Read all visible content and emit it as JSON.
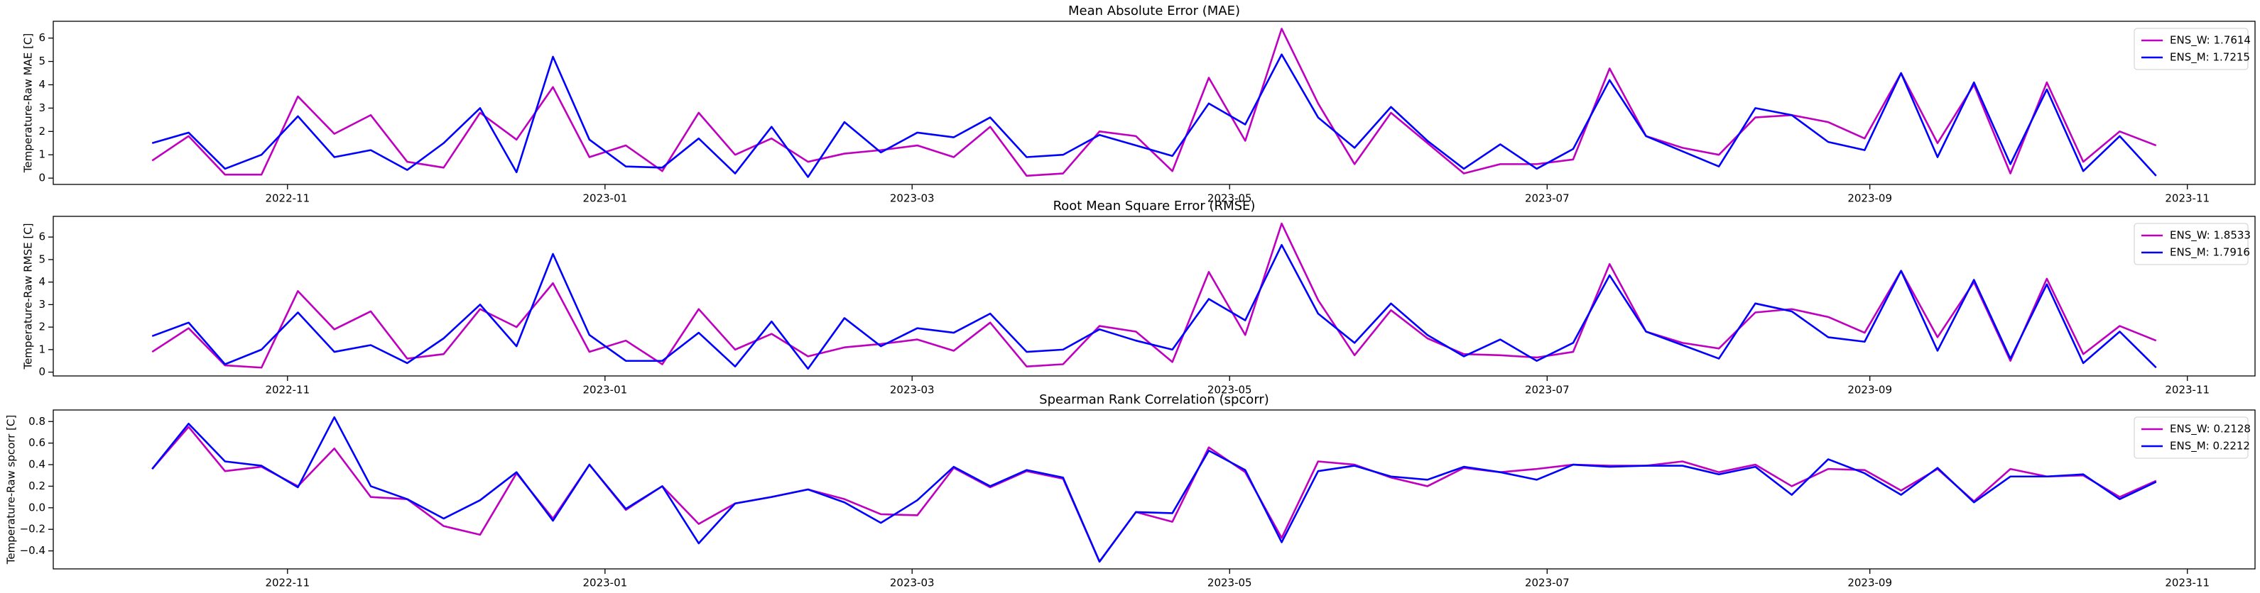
{
  "chart_data": [
    {
      "type": "line",
      "title": "Mean Absolute Error (MAE)",
      "ylabel": "Temperature-Raw MAE [C]",
      "x": [
        "2022-10-06",
        "2022-10-13",
        "2022-10-20",
        "2022-10-27",
        "2022-11-03",
        "2022-11-10",
        "2022-11-17",
        "2022-11-24",
        "2022-12-01",
        "2022-12-08",
        "2022-12-15",
        "2022-12-22",
        "2022-12-29",
        "2023-01-05",
        "2023-01-12",
        "2023-01-19",
        "2023-01-26",
        "2023-02-02",
        "2023-02-09",
        "2023-02-16",
        "2023-02-23",
        "2023-03-02",
        "2023-03-09",
        "2023-03-16",
        "2023-03-23",
        "2023-03-30",
        "2023-04-06",
        "2023-04-13",
        "2023-04-20",
        "2023-04-27",
        "2023-05-04",
        "2023-05-11",
        "2023-05-18",
        "2023-05-25",
        "2023-06-01",
        "2023-06-08",
        "2023-06-15",
        "2023-06-22",
        "2023-06-29",
        "2023-07-06",
        "2023-07-13",
        "2023-07-20",
        "2023-07-27",
        "2023-08-03",
        "2023-08-10",
        "2023-08-17",
        "2023-08-24",
        "2023-08-31",
        "2023-09-07",
        "2023-09-14",
        "2023-09-21",
        "2023-09-28",
        "2023-10-05",
        "2023-10-12",
        "2023-10-19",
        "2023-10-26"
      ],
      "series": [
        {
          "name": "ENS_W: 1.7614",
          "color": "#bf00bf",
          "values": [
            0.75,
            1.8,
            0.15,
            0.15,
            3.5,
            1.9,
            2.7,
            0.7,
            0.45,
            2.8,
            1.65,
            3.9,
            0.9,
            1.4,
            0.3,
            2.8,
            1.0,
            1.7,
            0.7,
            1.05,
            1.2,
            1.4,
            0.9,
            2.2,
            0.1,
            0.2,
            2.0,
            1.8,
            0.3,
            4.3,
            1.6,
            6.4,
            3.2,
            0.6,
            2.8,
            1.5,
            0.2,
            0.6,
            0.6,
            0.8,
            4.7,
            1.8,
            1.3,
            1.0,
            2.6,
            2.7,
            2.4,
            1.7,
            4.5,
            1.5,
            4.0,
            0.2,
            4.1,
            0.7,
            2.0,
            1.4
          ]
        },
        {
          "name": "ENS_M: 1.7215",
          "color": "#0000ff",
          "values": [
            1.5,
            1.95,
            0.4,
            1.0,
            2.65,
            0.9,
            1.2,
            0.35,
            1.5,
            3.0,
            0.25,
            5.2,
            1.65,
            0.5,
            0.45,
            1.7,
            0.2,
            2.2,
            0.05,
            2.4,
            1.1,
            1.95,
            1.75,
            2.6,
            0.9,
            1.0,
            1.85,
            1.4,
            0.95,
            3.2,
            2.3,
            5.3,
            2.6,
            1.3,
            3.05,
            1.6,
            0.4,
            1.45,
            0.4,
            1.25,
            4.2,
            1.8,
            1.15,
            0.5,
            3.0,
            2.7,
            1.55,
            1.2,
            4.5,
            0.9,
            4.1,
            0.6,
            3.8,
            0.3,
            1.8,
            0.1
          ]
        }
      ],
      "xlim": [
        "2022-09-17",
        "2023-11-14"
      ],
      "xticks": [
        {
          "value": "2022-11-01",
          "label": "2022-11"
        },
        {
          "value": "2023-01-01",
          "label": "2023-01"
        },
        {
          "value": "2023-03-01",
          "label": "2023-03"
        },
        {
          "value": "2023-05-01",
          "label": "2023-05"
        },
        {
          "value": "2023-07-01",
          "label": "2023-07"
        },
        {
          "value": "2023-09-01",
          "label": "2023-09"
        },
        {
          "value": "2023-11-01",
          "label": "2023-11"
        }
      ],
      "ylim": [
        -0.27,
        6.72
      ],
      "yticks": [
        0,
        1,
        2,
        3,
        4,
        5,
        6
      ],
      "grid": false,
      "legend": "upper right"
    },
    {
      "type": "line",
      "title": "Root Mean Square Error (RMSE)",
      "ylabel": "Temperature-Raw RMSE [C]",
      "x": [
        "2022-10-06",
        "2022-10-13",
        "2022-10-20",
        "2022-10-27",
        "2022-11-03",
        "2022-11-10",
        "2022-11-17",
        "2022-11-24",
        "2022-12-01",
        "2022-12-08",
        "2022-12-15",
        "2022-12-22",
        "2022-12-29",
        "2023-01-05",
        "2023-01-12",
        "2023-01-19",
        "2023-01-26",
        "2023-02-02",
        "2023-02-09",
        "2023-02-16",
        "2023-02-23",
        "2023-03-02",
        "2023-03-09",
        "2023-03-16",
        "2023-03-23",
        "2023-03-30",
        "2023-04-06",
        "2023-04-13",
        "2023-04-20",
        "2023-04-27",
        "2023-05-04",
        "2023-05-11",
        "2023-05-18",
        "2023-05-25",
        "2023-06-01",
        "2023-06-08",
        "2023-06-15",
        "2023-06-22",
        "2023-06-29",
        "2023-07-06",
        "2023-07-13",
        "2023-07-20",
        "2023-07-27",
        "2023-08-03",
        "2023-08-10",
        "2023-08-17",
        "2023-08-24",
        "2023-08-31",
        "2023-09-07",
        "2023-09-14",
        "2023-09-21",
        "2023-09-28",
        "2023-10-05",
        "2023-10-12",
        "2023-10-19",
        "2023-10-26"
      ],
      "series": [
        {
          "name": "ENS_W: 1.8533",
          "color": "#bf00bf",
          "values": [
            0.9,
            1.95,
            0.3,
            0.2,
            3.6,
            1.9,
            2.7,
            0.6,
            0.8,
            2.8,
            2.0,
            3.95,
            0.9,
            1.4,
            0.35,
            2.8,
            1.0,
            1.7,
            0.7,
            1.1,
            1.25,
            1.45,
            0.95,
            2.2,
            0.25,
            0.35,
            2.05,
            1.8,
            0.45,
            4.45,
            1.65,
            6.6,
            3.2,
            0.75,
            2.75,
            1.5,
            0.8,
            0.75,
            0.65,
            0.9,
            4.8,
            1.8,
            1.3,
            1.05,
            2.65,
            2.8,
            2.45,
            1.75,
            4.5,
            1.55,
            4.0,
            0.5,
            4.15,
            0.8,
            2.05,
            1.4
          ]
        },
        {
          "name": "ENS_M: 1.7916",
          "color": "#0000ff",
          "values": [
            1.6,
            2.2,
            0.35,
            1.0,
            2.65,
            0.9,
            1.2,
            0.4,
            1.5,
            3.0,
            1.15,
            5.25,
            1.65,
            0.5,
            0.5,
            1.75,
            0.25,
            2.25,
            0.15,
            2.4,
            1.15,
            1.95,
            1.75,
            2.6,
            0.9,
            1.0,
            1.9,
            1.4,
            1.0,
            3.25,
            2.3,
            5.65,
            2.6,
            1.3,
            3.05,
            1.65,
            0.7,
            1.45,
            0.5,
            1.3,
            4.3,
            1.8,
            1.2,
            0.6,
            3.05,
            2.7,
            1.55,
            1.35,
            4.5,
            0.95,
            4.1,
            0.6,
            3.9,
            0.4,
            1.8,
            0.2
          ]
        }
      ],
      "xlim": [
        "2022-09-17",
        "2023-11-14"
      ],
      "xticks": [
        {
          "value": "2022-11-01",
          "label": "2022-11"
        },
        {
          "value": "2023-01-01",
          "label": "2023-01"
        },
        {
          "value": "2023-03-01",
          "label": "2023-03"
        },
        {
          "value": "2023-05-01",
          "label": "2023-05"
        },
        {
          "value": "2023-07-01",
          "label": "2023-07"
        },
        {
          "value": "2023-09-01",
          "label": "2023-09"
        },
        {
          "value": "2023-11-01",
          "label": "2023-11"
        }
      ],
      "ylim": [
        -0.17,
        6.92
      ],
      "yticks": [
        0,
        1,
        2,
        3,
        4,
        5,
        6
      ],
      "grid": false,
      "legend": "upper right"
    },
    {
      "type": "line",
      "title": "Spearman Rank Correlation (spcorr)",
      "ylabel": "Temperature-Raw spcorr [C]",
      "x": [
        "2022-10-06",
        "2022-10-13",
        "2022-10-20",
        "2022-10-27",
        "2022-11-03",
        "2022-11-10",
        "2022-11-17",
        "2022-11-24",
        "2022-12-01",
        "2022-12-08",
        "2022-12-15",
        "2022-12-22",
        "2022-12-29",
        "2023-01-05",
        "2023-01-12",
        "2023-01-19",
        "2023-01-26",
        "2023-02-02",
        "2023-02-09",
        "2023-02-16",
        "2023-02-23",
        "2023-03-02",
        "2023-03-09",
        "2023-03-16",
        "2023-03-23",
        "2023-03-30",
        "2023-04-06",
        "2023-04-13",
        "2023-04-20",
        "2023-04-27",
        "2023-05-04",
        "2023-05-11",
        "2023-05-18",
        "2023-05-25",
        "2023-06-01",
        "2023-06-08",
        "2023-06-15",
        "2023-06-22",
        "2023-06-29",
        "2023-07-06",
        "2023-07-13",
        "2023-07-20",
        "2023-07-27",
        "2023-08-03",
        "2023-08-10",
        "2023-08-17",
        "2023-08-24",
        "2023-08-31",
        "2023-09-07",
        "2023-09-14",
        "2023-09-21",
        "2023-09-28",
        "2023-10-05",
        "2023-10-12",
        "2023-10-19",
        "2023-10-26"
      ],
      "series": [
        {
          "name": "ENS_W: 0.2128",
          "color": "#bf00bf",
          "values": [
            0.36,
            0.75,
            0.34,
            0.38,
            0.2,
            0.55,
            0.1,
            0.08,
            -0.17,
            -0.25,
            0.32,
            -0.1,
            0.4,
            -0.02,
            0.2,
            -0.15,
            0.04,
            0.1,
            0.17,
            0.08,
            -0.06,
            -0.07,
            0.37,
            0.19,
            0.34,
            0.27,
            -0.5,
            -0.04,
            -0.13,
            0.56,
            0.33,
            -0.28,
            0.43,
            0.4,
            0.28,
            0.2,
            0.37,
            0.33,
            0.36,
            0.4,
            0.39,
            0.39,
            0.43,
            0.33,
            0.4,
            0.2,
            0.36,
            0.35,
            0.16,
            0.36,
            0.06,
            0.36,
            0.29,
            0.3,
            0.1,
            0.25
          ]
        },
        {
          "name": "ENS_M: 0.2212",
          "color": "#0000ff",
          "values": [
            0.36,
            0.78,
            0.43,
            0.39,
            0.19,
            0.84,
            0.2,
            0.08,
            -0.1,
            0.07,
            0.33,
            -0.12,
            0.4,
            -0.01,
            0.2,
            -0.33,
            0.04,
            0.1,
            0.17,
            0.05,
            -0.14,
            0.07,
            0.38,
            0.2,
            0.35,
            0.28,
            -0.5,
            -0.04,
            -0.05,
            0.53,
            0.35,
            -0.32,
            0.34,
            0.39,
            0.29,
            0.26,
            0.38,
            0.33,
            0.26,
            0.4,
            0.38,
            0.39,
            0.39,
            0.31,
            0.38,
            0.12,
            0.45,
            0.32,
            0.12,
            0.37,
            0.05,
            0.29,
            0.29,
            0.31,
            0.08,
            0.24
          ]
        }
      ],
      "xlim": [
        "2022-09-17",
        "2023-11-14"
      ],
      "xticks": [
        {
          "value": "2022-11-01",
          "label": "2022-11"
        },
        {
          "value": "2023-01-01",
          "label": "2023-01"
        },
        {
          "value": "2023-03-01",
          "label": "2023-03"
        },
        {
          "value": "2023-05-01",
          "label": "2023-05"
        },
        {
          "value": "2023-07-01",
          "label": "2023-07"
        },
        {
          "value": "2023-09-01",
          "label": "2023-09"
        },
        {
          "value": "2023-11-01",
          "label": "2023-11"
        }
      ],
      "ylim": [
        -0.567,
        0.907
      ],
      "yticks": [
        {
          "value": -0.4,
          "label": "−0.4"
        },
        {
          "value": -0.2,
          "label": "−0.2"
        },
        {
          "value": 0,
          "label": "0.0"
        },
        0.2,
        0.4,
        0.6,
        0.8
      ],
      "grid": false,
      "legend": "upper right"
    }
  ]
}
